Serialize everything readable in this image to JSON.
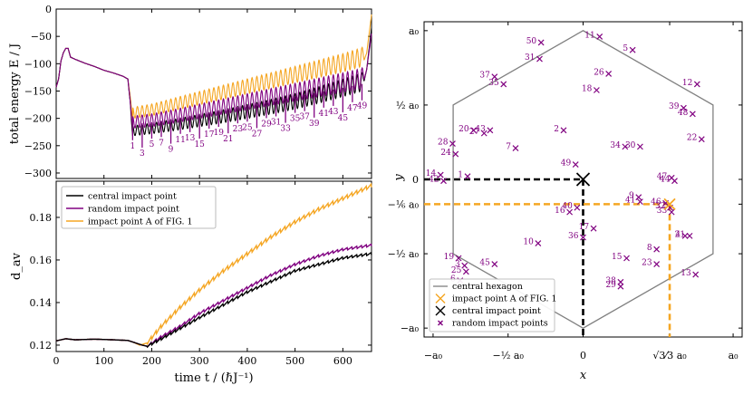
{
  "chart_data": [
    {
      "type": "line",
      "panel": "top-left",
      "ylabel": "total energy E / J",
      "ylim": [
        -310,
        0
      ],
      "xlim": [
        0,
        660
      ],
      "yticks": [
        "0",
        "−50",
        "−100",
        "−150",
        "−200",
        "−250",
        "−300"
      ],
      "ytick_values": [
        0,
        -50,
        -100,
        -150,
        -200,
        -250,
        -300
      ],
      "series": [
        {
          "name": "central impact point",
          "color": "#000000",
          "x": [
            0,
            5,
            10,
            15,
            20,
            25,
            30,
            40,
            60,
            80,
            100,
            120,
            140,
            150,
            155,
            158,
            160,
            200,
            250,
            300,
            350,
            400,
            450,
            500,
            550,
            600,
            640,
            650,
            660
          ],
          "y": [
            -143,
            -128,
            -95,
            -80,
            -72,
            -72,
            -88,
            -92,
            -99,
            -105,
            -112,
            -117,
            -123,
            -128,
            -170,
            -210,
            -232,
            -228,
            -222,
            -215,
            -208,
            -200,
            -192,
            -183,
            -172,
            -160,
            -150,
            -110,
            -35
          ]
        },
        {
          "name": "random impact point",
          "color": "#800080",
          "x": [
            0,
            5,
            10,
            15,
            20,
            25,
            30,
            40,
            60,
            80,
            100,
            120,
            140,
            150,
            155,
            158,
            160,
            200,
            250,
            300,
            350,
            400,
            450,
            500,
            550,
            600,
            640,
            650,
            660
          ],
          "y": [
            -143,
            -128,
            -95,
            -80,
            -72,
            -72,
            -88,
            -92,
            -99,
            -105,
            -112,
            -117,
            -123,
            -128,
            -170,
            -200,
            -218,
            -215,
            -208,
            -200,
            -192,
            -184,
            -176,
            -168,
            -160,
            -152,
            -145,
            -110,
            -45
          ]
        },
        {
          "name": "impact point A of FIG. 1",
          "color": "#f5a623",
          "x": [
            0,
            5,
            10,
            15,
            20,
            25,
            30,
            40,
            60,
            80,
            100,
            120,
            140,
            150,
            155,
            158,
            160,
            200,
            250,
            300,
            350,
            400,
            450,
            500,
            550,
            600,
            640,
            650,
            660
          ],
          "y": [
            -143,
            -128,
            -95,
            -80,
            -72,
            -72,
            -88,
            -92,
            -99,
            -105,
            -112,
            -117,
            -123,
            -128,
            -160,
            -185,
            -200,
            -195,
            -185,
            -175,
            -165,
            -155,
            -145,
            -135,
            -125,
            -115,
            -105,
            -80,
            -10
          ]
        }
      ],
      "annotations": [
        "1",
        "3",
        "5",
        "7",
        "9",
        "11",
        "13",
        "15",
        "17",
        "19",
        "21",
        "23",
        "25",
        "27",
        "29",
        "31",
        "33",
        "35",
        "37",
        "39",
        "41",
        "43",
        "45",
        "47",
        "49"
      ]
    },
    {
      "type": "line",
      "panel": "bottom-left",
      "xlabel": "time t / (ℏJ⁻¹)",
      "ylabel": "d_av",
      "xlim": [
        0,
        660
      ],
      "ylim": [
        0.117,
        0.197
      ],
      "xticks": [
        "0",
        "100",
        "200",
        "300",
        "400",
        "500",
        "600"
      ],
      "xtick_values": [
        0,
        100,
        200,
        300,
        400,
        500,
        600
      ],
      "yticks": [
        "0.12",
        "0.14",
        "0.16",
        "0.18"
      ],
      "ytick_values": [
        0.12,
        0.14,
        0.16,
        0.18
      ],
      "legend_position": "top-left",
      "series": [
        {
          "name": "central impact point",
          "color": "#000000",
          "x": [
            0,
            10,
            20,
            40,
            80,
            120,
            150,
            160,
            180,
            190,
            220,
            260,
            300,
            350,
            400,
            450,
            500,
            550,
            600,
            660
          ],
          "y": [
            0.122,
            0.1225,
            0.123,
            0.1225,
            0.1228,
            0.1225,
            0.1222,
            0.1215,
            0.12,
            0.1195,
            0.123,
            0.128,
            0.133,
            0.139,
            0.145,
            0.15,
            0.155,
            0.158,
            0.161,
            0.163
          ]
        },
        {
          "name": "random impact point",
          "color": "#800080",
          "x": [
            0,
            10,
            20,
            40,
            80,
            120,
            150,
            160,
            180,
            190,
            220,
            260,
            300,
            350,
            400,
            450,
            500,
            550,
            600,
            660
          ],
          "y": [
            0.122,
            0.1225,
            0.123,
            0.1225,
            0.1228,
            0.1225,
            0.1222,
            0.1215,
            0.12,
            0.1195,
            0.124,
            0.129,
            0.135,
            0.141,
            0.147,
            0.153,
            0.158,
            0.162,
            0.165,
            0.167
          ]
        },
        {
          "name": "impact point A of FIG. 1",
          "color": "#f5a623",
          "x": [
            0,
            10,
            20,
            40,
            80,
            120,
            150,
            160,
            175,
            190,
            220,
            260,
            300,
            350,
            400,
            450,
            500,
            550,
            600,
            660
          ],
          "y": [
            0.122,
            0.1225,
            0.123,
            0.1225,
            0.1228,
            0.1225,
            0.1222,
            0.1215,
            0.12,
            0.121,
            0.129,
            0.138,
            0.146,
            0.155,
            0.163,
            0.171,
            0.178,
            0.184,
            0.189,
            0.195
          ]
        }
      ]
    },
    {
      "type": "scatter",
      "panel": "right",
      "xlabel": "x",
      "ylabel": "y",
      "xlim": [
        -1.06,
        1.06
      ],
      "ylim": [
        -1.06,
        1.06
      ],
      "xticks": [
        "−a₀",
        "−½ a₀",
        "0",
        "√3⁄3 a₀",
        "a₀"
      ],
      "xtick_values": [
        -1,
        -0.5,
        0,
        0.577,
        1
      ],
      "yticks": [
        "a₀",
        "½ a₀",
        "0",
        "−⅙ a₀",
        "−½ a₀",
        "−a₀"
      ],
      "ytick_values": [
        1,
        0.5,
        0,
        -0.1667,
        -0.5,
        -1
      ],
      "hexagon_label": "central hexagon",
      "impact_A": {
        "label": "impact point A of FIG. 1",
        "x": 0.577,
        "y": -0.1667
      },
      "central": {
        "label": "central impact point",
        "x": 0,
        "y": 0
      },
      "random_label": "random impact points",
      "random_points": [
        {
          "n": "1",
          "x": -0.77,
          "y": 0.02
        },
        {
          "n": "2",
          "x": -0.13,
          "y": 0.33
        },
        {
          "n": "3",
          "x": -0.79,
          "y": -0.58
        },
        {
          "n": "4",
          "x": 0.68,
          "y": -0.38
        },
        {
          "n": "5",
          "x": 0.33,
          "y": 0.87
        },
        {
          "n": "6",
          "x": -0.82,
          "y": -0.68
        },
        {
          "n": "7",
          "x": -0.45,
          "y": 0.21
        },
        {
          "n": "8",
          "x": 0.49,
          "y": -0.47
        },
        {
          "n": "9",
          "x": 0.37,
          "y": -0.12
        },
        {
          "n": "10",
          "x": -0.3,
          "y": -0.43
        },
        {
          "n": "11",
          "x": 0.11,
          "y": 0.96
        },
        {
          "n": "12",
          "x": 0.76,
          "y": 0.64
        },
        {
          "n": "13",
          "x": 0.75,
          "y": -0.64
        },
        {
          "n": "14",
          "x": -0.95,
          "y": 0.03
        },
        {
          "n": "15",
          "x": 0.29,
          "y": -0.53
        },
        {
          "n": "16",
          "x": -0.09,
          "y": -0.22
        },
        {
          "n": "17",
          "x": 0.07,
          "y": -0.33
        },
        {
          "n": "18",
          "x": 0.09,
          "y": 0.6
        },
        {
          "n": "19",
          "x": -0.83,
          "y": -0.53
        },
        {
          "n": "20",
          "x": -0.73,
          "y": 0.33
        },
        {
          "n": "21",
          "x": 0.71,
          "y": -0.38
        },
        {
          "n": "22",
          "x": 0.79,
          "y": 0.27
        },
        {
          "n": "23",
          "x": 0.49,
          "y": -0.57
        },
        {
          "n": "24",
          "x": -0.85,
          "y": 0.17
        },
        {
          "n": "25",
          "x": -0.78,
          "y": -0.62
        },
        {
          "n": "26",
          "x": 0.17,
          "y": 0.71
        },
        {
          "n": "27",
          "x": -0.66,
          "y": 0.31
        },
        {
          "n": "28",
          "x": -0.87,
          "y": 0.24
        },
        {
          "n": "29",
          "x": 0.25,
          "y": -0.72
        },
        {
          "n": "30",
          "x": 0.38,
          "y": 0.22
        },
        {
          "n": "31",
          "x": -0.29,
          "y": 0.81
        },
        {
          "n": "32",
          "x": 0.58,
          "y": -0.19
        },
        {
          "n": "33",
          "x": 0.59,
          "y": -0.22
        },
        {
          "n": "34",
          "x": 0.28,
          "y": 0.22
        },
        {
          "n": "35",
          "x": -0.53,
          "y": 0.64
        },
        {
          "n": "36",
          "x": 0,
          "y": -0.39
        },
        {
          "n": "37",
          "x": -0.59,
          "y": 0.69
        },
        {
          "n": "38",
          "x": 0.25,
          "y": -0.69
        },
        {
          "n": "39",
          "x": 0.67,
          "y": 0.48
        },
        {
          "n": "40",
          "x": -0.04,
          "y": -0.19
        },
        {
          "n": "41",
          "x": 0.38,
          "y": -0.15
        },
        {
          "n": "42",
          "x": -0.93,
          "y": -0.01
        },
        {
          "n": "43",
          "x": -0.62,
          "y": 0.33
        },
        {
          "n": "44",
          "x": 0.61,
          "y": -0.01
        },
        {
          "n": "45",
          "x": -0.59,
          "y": -0.57
        },
        {
          "n": "46",
          "x": 0.55,
          "y": -0.16
        },
        {
          "n": "47",
          "x": 0.59,
          "y": 0.01
        },
        {
          "n": "48",
          "x": 0.73,
          "y": 0.44
        },
        {
          "n": "49",
          "x": -0.05,
          "y": 0.1
        },
        {
          "n": "50",
          "x": -0.28,
          "y": 0.92
        }
      ]
    }
  ]
}
